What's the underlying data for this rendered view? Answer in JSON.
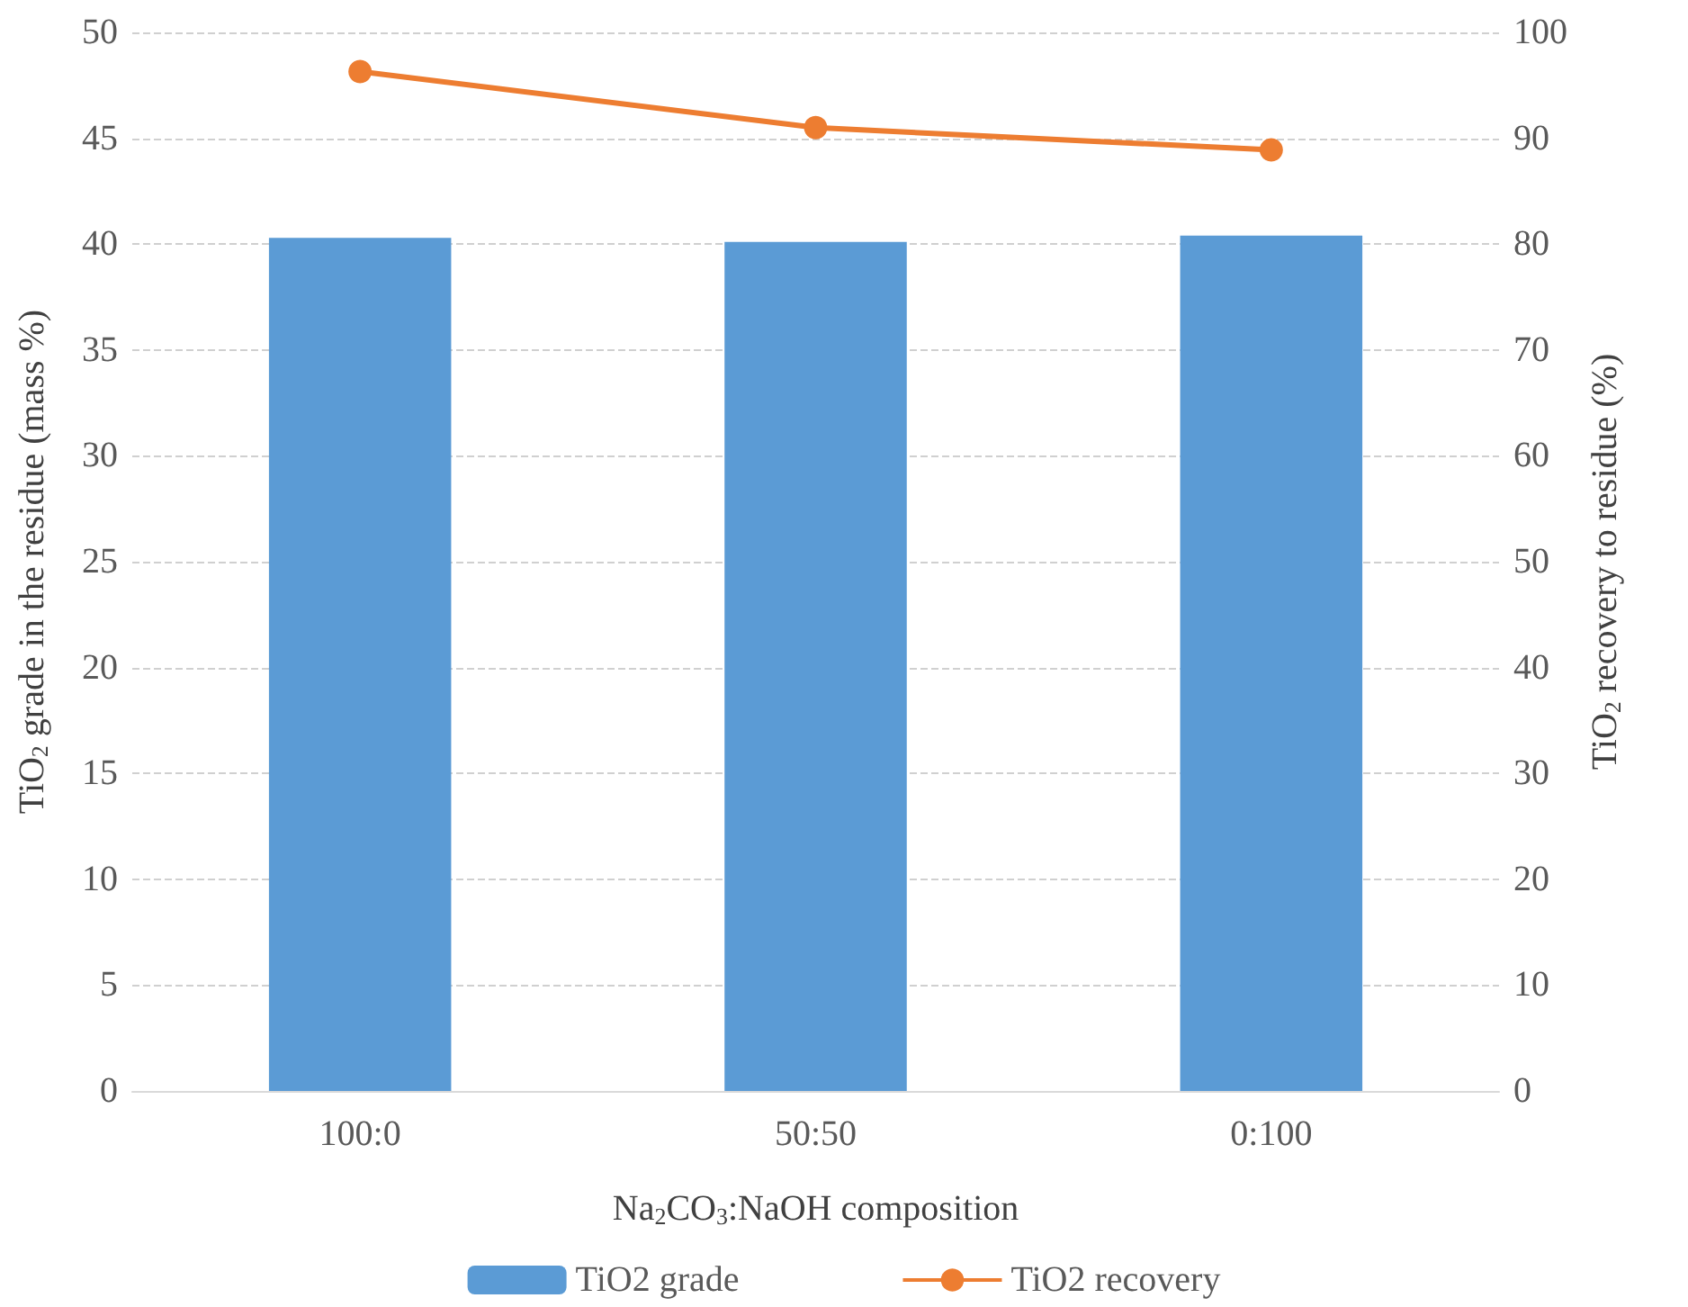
{
  "chart_data": {
    "type": "bar",
    "categories": [
      "100:0",
      "50:50",
      "0:100"
    ],
    "xlabel": "Na$_{2}$CO$_{3}$:NaOH composition",
    "ylabel": "TiO$_{2}$ grade in the residue (mass %)",
    "y2label": "TiO$_{2}$ recovery to residue (%)",
    "series": [
      {
        "name": "TiO2 grade",
        "color": "#5b9bd5",
        "values": [
          40.3,
          40.1,
          40.4
        ]
      },
      {
        "name": "TiO2 recovery",
        "type": "line",
        "axis": "y2",
        "color": "#ed7d31",
        "marker": "circle",
        "values": [
          96.3,
          91.0,
          88.9
        ]
      }
    ],
    "ylim": [
      0,
      50
    ],
    "yticks": [
      0,
      5,
      10,
      15,
      20,
      25,
      30,
      35,
      40,
      45,
      50
    ],
    "y2lim": [
      0,
      100
    ],
    "y2ticks": [
      0,
      10,
      20,
      30,
      40,
      50,
      60,
      70,
      80,
      90,
      100
    ],
    "grid": "y",
    "legend": "bottom"
  }
}
